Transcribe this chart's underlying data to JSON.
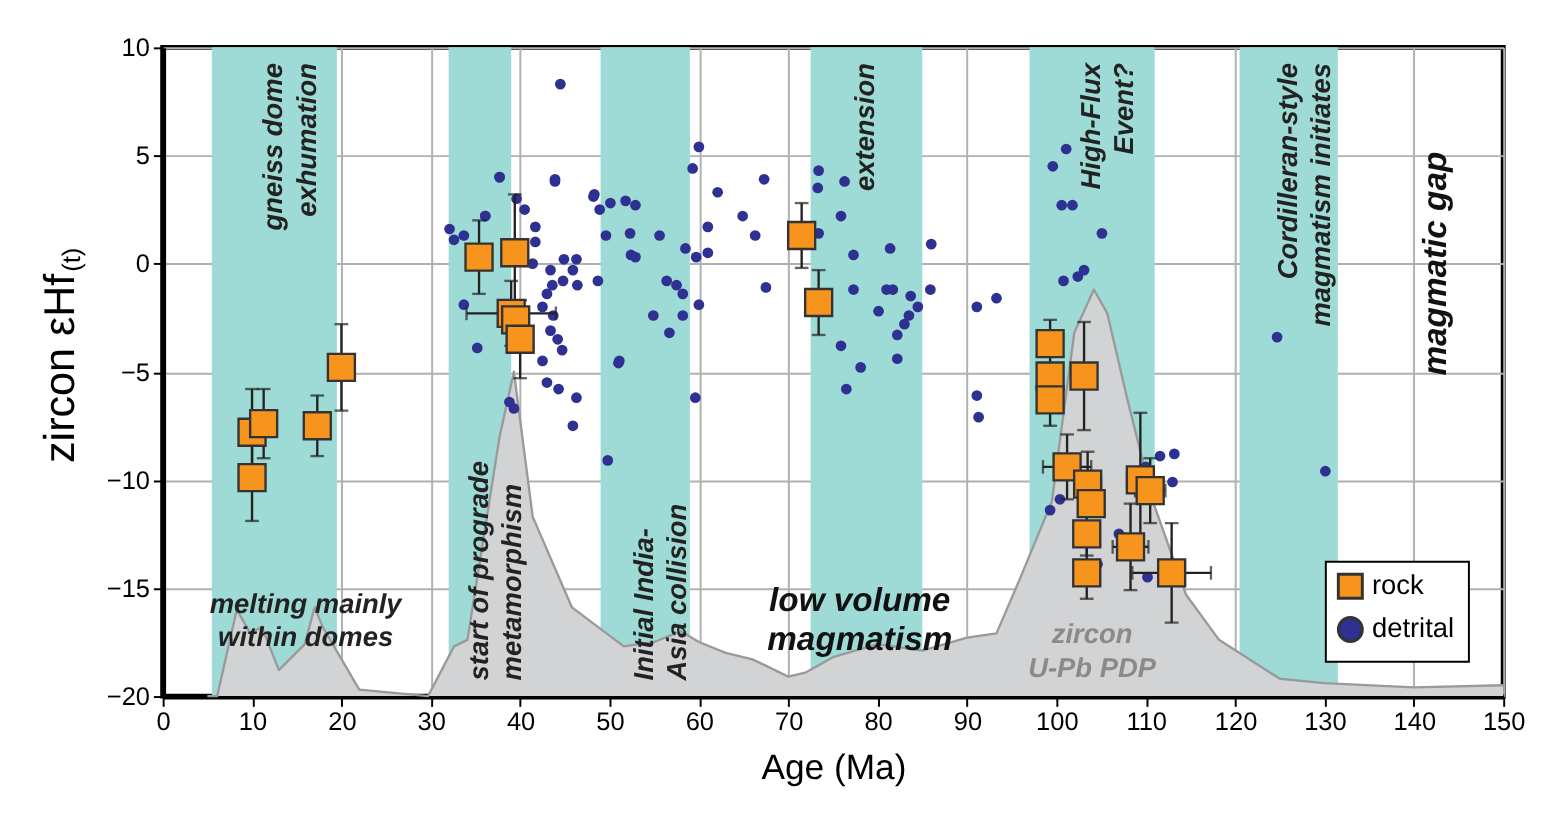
{
  "chart_data": {
    "type": "scatter",
    "xlabel": "Age (Ma)",
    "ylabel": "zircon εHf$_{(t)}$",
    "xlim": [
      0,
      150
    ],
    "ylim": [
      -20,
      10
    ],
    "xticks": [
      0,
      10,
      20,
      30,
      40,
      50,
      60,
      70,
      80,
      90,
      100,
      110,
      120,
      130,
      140,
      150
    ],
    "yticks": [
      -20,
      -15,
      -10,
      -5,
      0,
      5,
      10
    ],
    "grid": true,
    "legend": "bottom right",
    "bands": [
      {
        "axis": "x",
        "from": 5.5,
        "to": 19.5,
        "label": "gneiss dome\nexhumation",
        "color": "#9fdbd6"
      },
      {
        "axis": "x",
        "from": 32,
        "to": 39,
        "label": "start of prograde\nmetamorphism",
        "color": "#9fdbd6"
      },
      {
        "axis": "x",
        "from": 49,
        "to": 59,
        "label": "Initial India-\nAsia collision",
        "color": "#9fdbd6"
      },
      {
        "axis": "x",
        "from": 72.5,
        "to": 85,
        "label": "extension",
        "color": "#9fdbd6"
      },
      {
        "axis": "x",
        "from": 97,
        "to": 111,
        "label": "High-Flux\nEvent?",
        "color": "#9fdbd6"
      },
      {
        "axis": "x",
        "from": 120.5,
        "to": 131.5,
        "label": "Cordilleran-style\nmagmatism initiates",
        "color": "#9fdbd6"
      }
    ],
    "annotations": [
      "melting mainly\nwithin domes",
      "low volume\nmagmatism",
      "zircon\nU-Pb PDP",
      "magmatic gap"
    ],
    "series": [
      {
        "type": "line",
        "color": "#9a9a9a",
        "x": [
          5,
          6.1,
          8.3,
          9.8,
          11.1,
          13,
          15.9,
          17,
          17.9,
          22,
          29.7,
          32.6,
          34.1,
          37.7,
          39.3,
          41.4,
          45.8,
          51.6,
          55,
          58,
          60,
          63,
          66,
          70,
          72,
          75,
          80,
          85,
          90,
          93.3,
          96,
          99.5,
          102,
          104.2,
          105.7,
          107.9,
          110.8,
          114.5,
          118.2,
          125,
          130,
          140,
          150
        ],
        "values": [
          -20,
          -20,
          -16,
          -17.1,
          -16.8,
          -18.8,
          -17.6,
          -15.9,
          -16.8,
          -19.7,
          -20,
          -17.7,
          -17.4,
          -8,
          -5,
          -11.7,
          -15.9,
          -17.7,
          -17.5,
          -17,
          -17.5,
          -18,
          -18.3,
          -19.1,
          -18.9,
          -18.2,
          -17.6,
          -17.9,
          -17.3,
          -17.1,
          -14.5,
          -11,
          -3.2,
          -1.2,
          -2.3,
          -6.2,
          -11,
          -15.3,
          -17.4,
          -19.2,
          -19.4,
          -19.6,
          -19.5
        ],
        "lower": [
          -20,
          -20,
          -20,
          -20,
          -20,
          -20,
          -20,
          -20,
          -20,
          -20,
          -20,
          -20,
          -20,
          -20,
          -20,
          -20,
          -20,
          -20,
          -20,
          -20,
          -20,
          -20,
          -20,
          -20,
          -20,
          -20,
          -20,
          -20,
          -20,
          -20,
          -20,
          -20,
          -20,
          -20,
          -20,
          -20,
          -20,
          -20,
          -20,
          -20,
          -20,
          -20,
          -20
        ],
        "upper": [
          -20,
          -20,
          -16,
          -17.1,
          -16.8,
          -18.8,
          -17.6,
          -15.9,
          -16.8,
          -19.7,
          -20,
          -17.7,
          -17.4,
          -8,
          -5,
          -11.7,
          -15.9,
          -17.7,
          -17.5,
          -17,
          -17.5,
          -18,
          -18.3,
          -19.1,
          -18.9,
          -18.2,
          -17.6,
          -17.9,
          -17.3,
          -17.1,
          -14.5,
          -11,
          -3.2,
          -1.2,
          -2.3,
          -6.2,
          -11,
          -15.3,
          -17.4,
          -19.2,
          -19.4,
          -19.6,
          -19.5
        ]
      },
      {
        "name": "detrital",
        "color": "#2e3192",
        "marker": "circle",
        "x": [
          32.1,
          33.7,
          32.6,
          37.7,
          36.1,
          33.7,
          35.2,
          43.9,
          39.6,
          40.5,
          41.7,
          41.7,
          41.4,
          43.4,
          43.6,
          43,
          42.5,
          43.7,
          43.4,
          44.2,
          44.7,
          42.5,
          43,
          44.3,
          46.3,
          45.9,
          38.8,
          39.3,
          48.2,
          48.9,
          50.1,
          51.8,
          52.9,
          49.6,
          52.3,
          55.6,
          44.9,
          46.3,
          45.9,
          44.8,
          46.4,
          48.7,
          52.4,
          52.9,
          56.4,
          57.5,
          58.2,
          60,
          58.2,
          54.9,
          56.7,
          51.1,
          59.6,
          49.8,
          58.5,
          59.7,
          61,
          61,
          60,
          59.3,
          62.1,
          64.9,
          66.3,
          67.3,
          67.5,
          73.4,
          73.3,
          76.3,
          75.9,
          73.4,
          77.3,
          81.4,
          77.3,
          81,
          81.7,
          80.1,
          83.7,
          85.9,
          86,
          84.5,
          83.5,
          83,
          82.2,
          75.9,
          78.1,
          76.5,
          82.2,
          91.1,
          91.1,
          91.3,
          44.5,
          37.7,
          43.9,
          36.1,
          48.3,
          51,
          101.1,
          99.6,
          100.6,
          101.8,
          105.1,
          100.8,
          102.4,
          103.1,
          93.3,
          124.7,
          130.1,
          111.6,
          113.2,
          110,
          113,
          100.4,
          99.3,
          107,
          110.2,
          104.6
        ],
        "values": [
          1.6,
          1.3,
          1.1,
          4,
          2.2,
          -1.9,
          -3.9,
          3.8,
          3,
          2.5,
          1.7,
          1,
          0,
          -0.3,
          -1,
          -1.4,
          -2,
          -2.4,
          -3.1,
          -3.5,
          -4,
          -4.5,
          -5.5,
          -5.8,
          -6.2,
          -7.5,
          -6.4,
          -6.7,
          3.1,
          2.5,
          2.8,
          2.9,
          2.7,
          1.3,
          1.4,
          1.3,
          0.2,
          0.2,
          -0.3,
          -0.8,
          -1,
          -0.8,
          0.4,
          0.3,
          -0.8,
          -1,
          -1.4,
          -1.9,
          -2.4,
          -2.4,
          -3.2,
          -4.5,
          -6.2,
          -9.1,
          0.7,
          0.3,
          0.5,
          1.7,
          5.4,
          4.4,
          3.3,
          2.2,
          1.3,
          3.9,
          -1.1,
          4.3,
          3.5,
          3.8,
          2.2,
          1.4,
          0.4,
          0.7,
          -1.2,
          -1.2,
          -1.2,
          -2.2,
          -1.5,
          -1.2,
          0.9,
          -2,
          -2.4,
          -2.8,
          -3.3,
          -3.8,
          -4.8,
          -5.8,
          -4.4,
          -2,
          -6.1,
          -7.1,
          8.3,
          4,
          3.9,
          2.2,
          3.2,
          -4.6,
          5.3,
          4.5,
          2.7,
          2.7,
          1.4,
          -0.8,
          -0.6,
          -0.3,
          -1.6,
          -3.4,
          -9.6,
          -8.9,
          -8.8,
          -9.4,
          -10.1,
          -10.9,
          -11.4,
          -12.5,
          -14.5,
          -13.9
        ]
      },
      {
        "name": "rock",
        "color": "#f7941d",
        "marker": "square",
        "x": [
          10,
          10,
          11.3,
          17.3,
          20,
          35.4,
          39.4,
          39,
          39.5,
          40,
          71.5,
          73.4,
          99.3,
          99.3,
          99.3,
          103.1,
          101.2,
          103.5,
          103.9,
          103.4,
          103.4,
          109.4,
          110.5,
          108.3,
          112.9
        ],
        "values": [
          -9.9,
          -7.8,
          -7.4,
          -7.5,
          -4.8,
          0.3,
          0.5,
          -2.3,
          -2.6,
          -3.5,
          1.3,
          -1.8,
          -3.7,
          -5.2,
          -6.3,
          -5.2,
          -9.4,
          -10.2,
          -11.1,
          -12.5,
          -14.3,
          -10,
          -10.5,
          -13.1,
          -14.3
        ],
        "errors": [
          2,
          2,
          1.6,
          1.4,
          2,
          1.7,
          2.7,
          1.5,
          null,
          1.8,
          1.5,
          1.5,
          1.1,
          null,
          1.2,
          2.5,
          1.5,
          1.5,
          null,
          1,
          1.2,
          3.1,
          1.5,
          2,
          2.3
        ],
        "xerrors": [
          null,
          null,
          null,
          null,
          null,
          null,
          null,
          5,
          null,
          null,
          null,
          null,
          null,
          null,
          null,
          null,
          2.7,
          1.5,
          null,
          null,
          null,
          1.5,
          1.7,
          2,
          4.4
        ]
      }
    ]
  }
}
